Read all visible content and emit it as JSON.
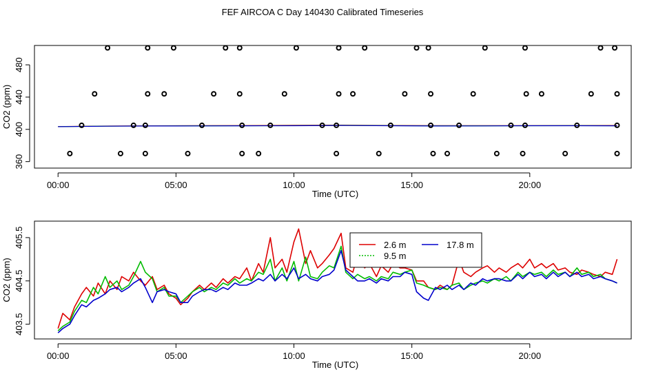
{
  "title": "FEF AIRCOA C  Day 140430  Calibrated Timeseries",
  "chart_data": [
    {
      "type": "scatter",
      "xlabel": "Time (UTC)",
      "ylabel": "CO2 (ppm)",
      "xlim": [
        -1.0,
        24.3
      ],
      "ylim": [
        352,
        504
      ],
      "xticks": [
        0,
        5,
        10,
        15,
        20
      ],
      "xtick_labels": [
        "00:00",
        "05:00",
        "10:00",
        "15:00",
        "20:00"
      ],
      "yticks": [
        360,
        400,
        440,
        480
      ],
      "ytick_labels": [
        "360",
        "400",
        "440",
        "480"
      ],
      "colors": [
        "#dd0000",
        "#00bb00",
        "#0000cc",
        "#dd00dd"
      ],
      "line_series": [
        {
          "name": "2.6 m",
          "x": [
            0.0,
            2.0,
            4.0,
            6.0,
            8.0,
            10.0,
            12.0,
            14.0,
            16.0,
            18.0,
            20.0,
            22.0,
            23.7
          ],
          "values": [
            403.5,
            404.1,
            404.4,
            404.6,
            404.8,
            405.0,
            405.3,
            404.9,
            404.7,
            404.6,
            404.7,
            404.8,
            404.9
          ]
        },
        {
          "name": "9.5 m",
          "x": [
            0.0,
            2.0,
            4.0,
            6.0,
            8.0,
            10.0,
            12.0,
            14.0,
            16.0,
            18.0,
            20.0,
            22.0,
            23.7
          ],
          "values": [
            403.4,
            404.0,
            404.3,
            404.4,
            404.5,
            404.6,
            405.0,
            404.6,
            404.4,
            404.4,
            404.5,
            404.6,
            404.5
          ]
        },
        {
          "name": "17.8 m",
          "x": [
            0.0,
            2.0,
            4.0,
            6.0,
            8.0,
            10.0,
            12.0,
            14.0,
            16.0,
            18.0,
            20.0,
            22.0,
            23.7
          ],
          "values": [
            403.3,
            403.9,
            404.2,
            404.3,
            404.4,
            404.5,
            404.9,
            404.5,
            404.2,
            404.3,
            404.5,
            404.5,
            404.4
          ]
        }
      ],
      "points": [
        {
          "x": 0.5,
          "y": 370
        },
        {
          "x": 2.65,
          "y": 370
        },
        {
          "x": 3.7,
          "y": 370
        },
        {
          "x": 5.5,
          "y": 370
        },
        {
          "x": 7.8,
          "y": 370
        },
        {
          "x": 8.5,
          "y": 370
        },
        {
          "x": 11.8,
          "y": 370
        },
        {
          "x": 13.6,
          "y": 370
        },
        {
          "x": 15.9,
          "y": 370
        },
        {
          "x": 16.5,
          "y": 370
        },
        {
          "x": 18.6,
          "y": 370
        },
        {
          "x": 19.7,
          "y": 370
        },
        {
          "x": 21.5,
          "y": 370
        },
        {
          "x": 23.7,
          "y": 370
        },
        {
          "x": 1.0,
          "y": 405
        },
        {
          "x": 3.2,
          "y": 405
        },
        {
          "x": 3.7,
          "y": 405
        },
        {
          "x": 6.1,
          "y": 405
        },
        {
          "x": 7.8,
          "y": 405
        },
        {
          "x": 9.0,
          "y": 405
        },
        {
          "x": 11.2,
          "y": 405
        },
        {
          "x": 11.8,
          "y": 405
        },
        {
          "x": 14.1,
          "y": 405
        },
        {
          "x": 15.8,
          "y": 405
        },
        {
          "x": 17.0,
          "y": 405
        },
        {
          "x": 19.2,
          "y": 405
        },
        {
          "x": 19.8,
          "y": 405
        },
        {
          "x": 22.0,
          "y": 405
        },
        {
          "x": 23.7,
          "y": 405
        },
        {
          "x": 1.55,
          "y": 444
        },
        {
          "x": 3.8,
          "y": 444
        },
        {
          "x": 4.5,
          "y": 444
        },
        {
          "x": 6.6,
          "y": 444
        },
        {
          "x": 7.7,
          "y": 444
        },
        {
          "x": 9.6,
          "y": 444
        },
        {
          "x": 11.9,
          "y": 444
        },
        {
          "x": 12.5,
          "y": 444
        },
        {
          "x": 14.7,
          "y": 444
        },
        {
          "x": 15.8,
          "y": 444
        },
        {
          "x": 17.6,
          "y": 444
        },
        {
          "x": 19.85,
          "y": 444
        },
        {
          "x": 20.5,
          "y": 444
        },
        {
          "x": 22.6,
          "y": 444
        },
        {
          "x": 23.7,
          "y": 444
        },
        {
          "x": 2.1,
          "y": 501
        },
        {
          "x": 3.8,
          "y": 501
        },
        {
          "x": 4.9,
          "y": 501
        },
        {
          "x": 7.1,
          "y": 501
        },
        {
          "x": 7.7,
          "y": 501
        },
        {
          "x": 10.1,
          "y": 501
        },
        {
          "x": 11.9,
          "y": 501
        },
        {
          "x": 13.0,
          "y": 501
        },
        {
          "x": 15.2,
          "y": 501
        },
        {
          "x": 15.7,
          "y": 501
        },
        {
          "x": 18.1,
          "y": 501
        },
        {
          "x": 19.8,
          "y": 501
        },
        {
          "x": 23.0,
          "y": 501
        },
        {
          "x": 23.6,
          "y": 501
        }
      ]
    },
    {
      "type": "line",
      "xlabel": "Time (UTC)",
      "ylabel": "CO2 (ppm)",
      "xlim": [
        -1.0,
        24.3
      ],
      "ylim": [
        403.16,
        405.88
      ],
      "xticks": [
        0,
        5,
        10,
        15,
        20
      ],
      "xtick_labels": [
        "00:00",
        "05:00",
        "10:00",
        "15:00",
        "20:00"
      ],
      "yticks": [
        403.5,
        404.5,
        405.5
      ],
      "ytick_labels": [
        "403.5",
        "404.5",
        "405.5"
      ],
      "legend": {
        "position": "top-center",
        "entries": [
          "2.6 m",
          "9.5 m",
          "17.8 m"
        ]
      },
      "series": [
        {
          "name": "2.6 m",
          "color": "#dd0000",
          "x": [
            0.0,
            0.2,
            0.5,
            0.7,
            1.0,
            1.2,
            1.5,
            1.7,
            2.0,
            2.2,
            2.5,
            2.7,
            3.0,
            3.2,
            3.5,
            3.7,
            4.0,
            4.2,
            4.5,
            4.7,
            5.0,
            5.2,
            5.5,
            5.7,
            6.0,
            6.2,
            6.5,
            6.7,
            7.0,
            7.2,
            7.5,
            7.7,
            8.0,
            8.2,
            8.5,
            8.7,
            9.0,
            9.2,
            9.5,
            9.7,
            10.0,
            10.2,
            10.5,
            10.7,
            11.0,
            11.2,
            11.5,
            11.7,
            12.0,
            12.2,
            12.5,
            12.7,
            13.0,
            13.2,
            13.5,
            13.7,
            14.0,
            14.2,
            14.5,
            14.7,
            15.0,
            15.2,
            15.5,
            15.7,
            16.0,
            16.2,
            16.5,
            16.7,
            17.0,
            17.2,
            17.5,
            17.7,
            18.0,
            18.2,
            18.5,
            18.7,
            19.0,
            19.2,
            19.5,
            19.7,
            20.0,
            20.2,
            20.5,
            20.7,
            21.0,
            21.2,
            21.5,
            21.7,
            22.0,
            22.2,
            22.5,
            22.7,
            23.0,
            23.2,
            23.5,
            23.7
          ],
          "values": [
            403.4,
            403.75,
            403.6,
            403.9,
            404.2,
            404.35,
            404.15,
            404.45,
            404.2,
            404.5,
            404.3,
            404.6,
            404.5,
            404.7,
            404.5,
            404.4,
            404.6,
            404.3,
            404.4,
            404.2,
            404.1,
            403.95,
            404.1,
            404.25,
            404.4,
            404.3,
            404.45,
            404.35,
            404.55,
            404.45,
            404.6,
            404.55,
            404.8,
            404.5,
            404.9,
            404.7,
            405.5,
            404.8,
            405.0,
            404.7,
            405.4,
            405.7,
            404.9,
            405.2,
            404.8,
            404.9,
            405.1,
            405.25,
            405.6,
            404.8,
            404.7,
            405.1,
            404.8,
            404.9,
            404.6,
            404.85,
            404.7,
            404.9,
            404.8,
            404.8,
            404.75,
            404.5,
            404.5,
            404.35,
            404.3,
            404.4,
            404.3,
            404.4,
            405.0,
            404.7,
            404.6,
            404.7,
            404.8,
            404.85,
            404.7,
            404.8,
            404.7,
            404.8,
            404.9,
            404.8,
            405.0,
            404.8,
            404.9,
            404.8,
            404.9,
            404.75,
            404.8,
            404.7,
            404.65,
            404.75,
            404.7,
            404.65,
            404.6,
            404.7,
            404.65,
            405.0
          ]
        },
        {
          "name": "9.5 m",
          "color": "#00bb00",
          "x": [
            0.0,
            0.2,
            0.5,
            0.7,
            1.0,
            1.2,
            1.5,
            1.7,
            2.0,
            2.2,
            2.5,
            2.7,
            3.0,
            3.2,
            3.5,
            3.7,
            4.0,
            4.2,
            4.5,
            4.7,
            5.0,
            5.2,
            5.5,
            5.7,
            6.0,
            6.2,
            6.5,
            6.7,
            7.0,
            7.2,
            7.5,
            7.7,
            8.0,
            8.2,
            8.5,
            8.7,
            9.0,
            9.2,
            9.5,
            9.7,
            10.0,
            10.2,
            10.5,
            10.7,
            11.0,
            11.2,
            11.5,
            11.7,
            12.0,
            12.2,
            12.5,
            12.7,
            13.0,
            13.2,
            13.5,
            13.7,
            14.0,
            14.2,
            14.5,
            14.7,
            15.0,
            15.2,
            15.5,
            15.7,
            16.0,
            16.2,
            16.5,
            16.7,
            17.0,
            17.2,
            17.5,
            17.7,
            18.0,
            18.2,
            18.5,
            18.7,
            19.0,
            19.2,
            19.5,
            19.7,
            20.0,
            20.2,
            20.5,
            20.7,
            21.0,
            21.2,
            21.5,
            21.7,
            22.0,
            22.2,
            22.5,
            22.7,
            23.0,
            23.2,
            23.5,
            23.7
          ],
          "values": [
            403.35,
            403.45,
            403.55,
            403.8,
            404.05,
            404.0,
            404.35,
            404.2,
            404.6,
            404.35,
            404.5,
            404.3,
            404.4,
            404.6,
            404.95,
            404.7,
            404.55,
            404.25,
            404.35,
            404.15,
            404.15,
            404.0,
            404.15,
            404.25,
            404.35,
            404.25,
            404.35,
            404.3,
            404.45,
            404.4,
            404.55,
            404.45,
            404.55,
            404.5,
            404.7,
            404.65,
            405.0,
            404.5,
            404.8,
            404.5,
            404.95,
            404.5,
            405.05,
            404.6,
            404.55,
            404.7,
            404.85,
            404.8,
            405.3,
            404.7,
            404.55,
            404.65,
            404.55,
            404.6,
            404.5,
            404.6,
            404.55,
            404.7,
            404.65,
            404.7,
            404.75,
            404.45,
            404.4,
            404.35,
            404.3,
            404.35,
            404.3,
            404.4,
            404.45,
            404.3,
            404.4,
            404.45,
            404.5,
            404.45,
            404.55,
            404.5,
            404.6,
            404.5,
            404.7,
            404.6,
            404.7,
            404.65,
            404.7,
            404.6,
            404.75,
            404.65,
            404.7,
            404.6,
            404.8,
            404.65,
            404.7,
            404.6,
            404.65,
            404.55,
            404.5,
            404.45
          ]
        },
        {
          "name": "17.8 m",
          "color": "#0000cc",
          "x": [
            0.0,
            0.2,
            0.5,
            0.7,
            1.0,
            1.2,
            1.5,
            1.7,
            2.0,
            2.2,
            2.5,
            2.7,
            3.0,
            3.2,
            3.5,
            3.7,
            4.0,
            4.2,
            4.5,
            4.7,
            5.0,
            5.2,
            5.5,
            5.7,
            6.0,
            6.2,
            6.5,
            6.7,
            7.0,
            7.2,
            7.5,
            7.7,
            8.0,
            8.2,
            8.5,
            8.7,
            9.0,
            9.2,
            9.5,
            9.7,
            10.0,
            10.2,
            10.5,
            10.7,
            11.0,
            11.2,
            11.5,
            11.7,
            12.0,
            12.2,
            12.5,
            12.7,
            13.0,
            13.2,
            13.5,
            13.7,
            14.0,
            14.2,
            14.5,
            14.7,
            15.0,
            15.2,
            15.5,
            15.7,
            16.0,
            16.2,
            16.5,
            16.7,
            17.0,
            17.2,
            17.5,
            17.7,
            18.0,
            18.2,
            18.5,
            18.7,
            19.0,
            19.2,
            19.5,
            19.7,
            20.0,
            20.2,
            20.5,
            20.7,
            21.0,
            21.2,
            21.5,
            21.7,
            22.0,
            22.2,
            22.5,
            22.7,
            23.0,
            23.2,
            23.5,
            23.7
          ],
          "values": [
            403.3,
            403.4,
            403.5,
            403.7,
            403.95,
            403.9,
            404.05,
            404.1,
            404.2,
            404.3,
            404.35,
            404.25,
            404.35,
            404.45,
            404.55,
            404.35,
            404.0,
            404.25,
            404.3,
            404.25,
            404.2,
            404.0,
            404.0,
            404.15,
            404.25,
            404.3,
            404.3,
            404.25,
            404.35,
            404.3,
            404.45,
            404.4,
            404.4,
            404.45,
            404.55,
            404.5,
            404.65,
            404.5,
            404.65,
            404.55,
            404.8,
            404.55,
            404.65,
            404.55,
            404.5,
            404.6,
            404.65,
            404.75,
            405.2,
            404.75,
            404.6,
            404.5,
            404.5,
            404.55,
            404.45,
            404.55,
            404.5,
            404.6,
            404.6,
            404.7,
            404.65,
            404.25,
            404.1,
            404.05,
            404.35,
            404.3,
            404.4,
            404.3,
            404.4,
            404.3,
            404.45,
            404.4,
            404.55,
            404.5,
            404.55,
            404.55,
            404.5,
            404.5,
            404.65,
            404.55,
            404.7,
            404.6,
            404.65,
            404.55,
            404.7,
            404.6,
            404.7,
            404.6,
            404.7,
            404.6,
            404.65,
            404.55,
            404.6,
            404.55,
            404.5,
            404.45
          ]
        }
      ]
    }
  ]
}
